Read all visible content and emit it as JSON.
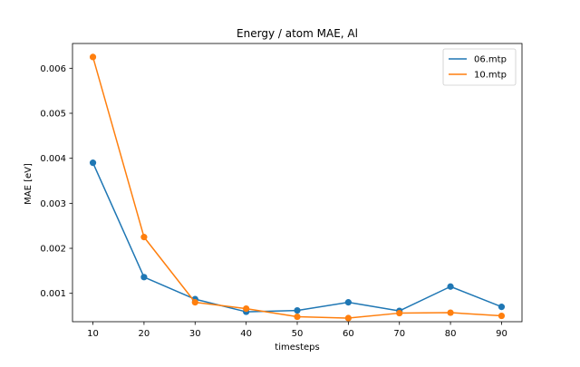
{
  "chart_data": {
    "type": "line",
    "title": "Energy / atom MAE, Al",
    "xlabel": "timesteps",
    "ylabel": "MAE [eV]",
    "x": [
      10,
      20,
      30,
      40,
      50,
      60,
      70,
      80,
      90
    ],
    "xlim": [
      6,
      94
    ],
    "ylim": [
      0.00037,
      0.00655
    ],
    "x_ticks": [
      10,
      20,
      30,
      40,
      50,
      60,
      70,
      80,
      90
    ],
    "y_ticks": [
      0.001,
      0.002,
      0.003,
      0.004,
      0.005,
      0.006
    ],
    "y_tick_labels": [
      "0.001",
      "0.002",
      "0.003",
      "0.004",
      "0.005",
      "0.006"
    ],
    "grid": false,
    "legend_position": "upper right",
    "series": [
      {
        "name": "06.mtp",
        "color": "#1f77b4",
        "values": [
          0.0039,
          0.00136,
          0.00087,
          0.00059,
          0.00062,
          0.0008,
          0.00061,
          0.00115,
          0.0007
        ]
      },
      {
        "name": "10.mtp",
        "color": "#ff7f0e",
        "values": [
          0.00625,
          0.00225,
          0.0008,
          0.00066,
          0.00048,
          0.00045,
          0.00056,
          0.00057,
          0.0005
        ]
      }
    ]
  }
}
